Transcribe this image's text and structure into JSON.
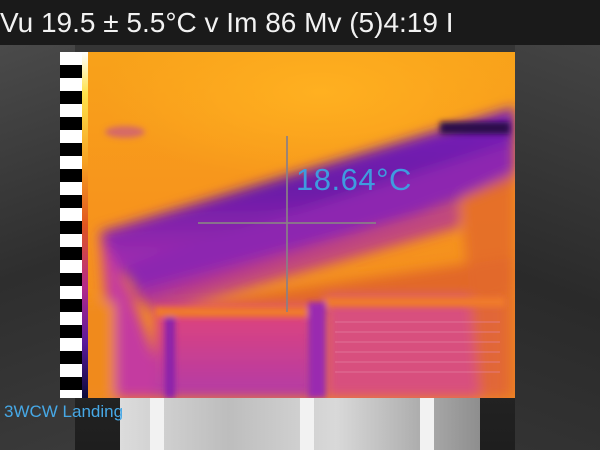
{
  "header": {
    "status_line": "Vu 19.5 ± 5.5°C  v Im 86 Mv (5)4:19 I"
  },
  "measurement": {
    "spot_temperature": "18.64°C"
  },
  "location_label": "3WCW Landing",
  "colors": {
    "spot_text": "#3f9bdf",
    "location_text": "#46a8e6",
    "topbar_bg": "#1a1a1a"
  },
  "icons": {
    "crosshair": "crosshair-icon",
    "scale": "color-scale"
  }
}
